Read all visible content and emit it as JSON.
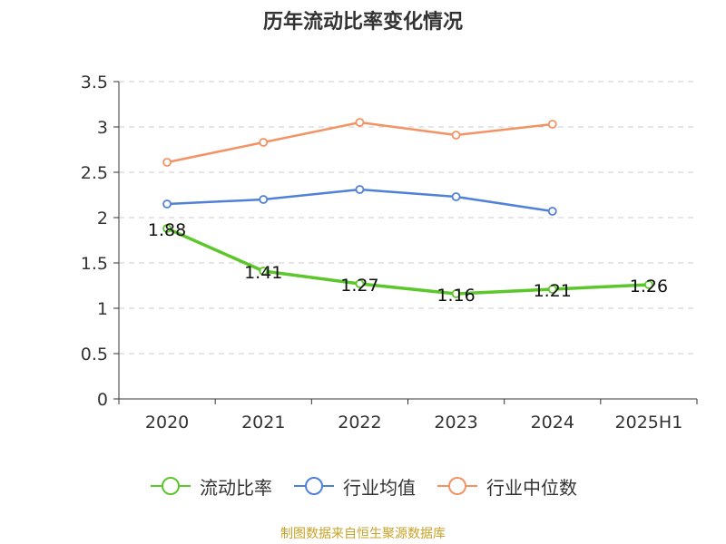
{
  "chart_data": {
    "type": "line",
    "title": "历年流动比率变化情况",
    "categories": [
      "2020",
      "2021",
      "2022",
      "2023",
      "2024",
      "2025H1"
    ],
    "ylim": [
      0,
      3.5
    ],
    "yticks": [
      "0",
      "0.5",
      "1",
      "1.5",
      "2",
      "2.5",
      "3",
      "3.5"
    ],
    "grid": true,
    "legend_position": "bottom",
    "series": [
      {
        "name": "流动比率",
        "color": "#5cc72a",
        "values": [
          1.88,
          1.41,
          1.27,
          1.16,
          1.21,
          1.26
        ],
        "labels": [
          "1.88",
          "1.41",
          "1.27",
          "1.16",
          "1.21",
          "1.26"
        ]
      },
      {
        "name": "行业均值",
        "color": "#4f81d9",
        "values": [
          2.15,
          2.2,
          2.31,
          2.23,
          2.07,
          null
        ]
      },
      {
        "name": "行业中位数",
        "color": "#f39363",
        "values": [
          2.61,
          2.83,
          3.05,
          2.91,
          3.03,
          null
        ]
      }
    ]
  },
  "footer": {
    "source": "制图数据来自恒生聚源数据库"
  }
}
